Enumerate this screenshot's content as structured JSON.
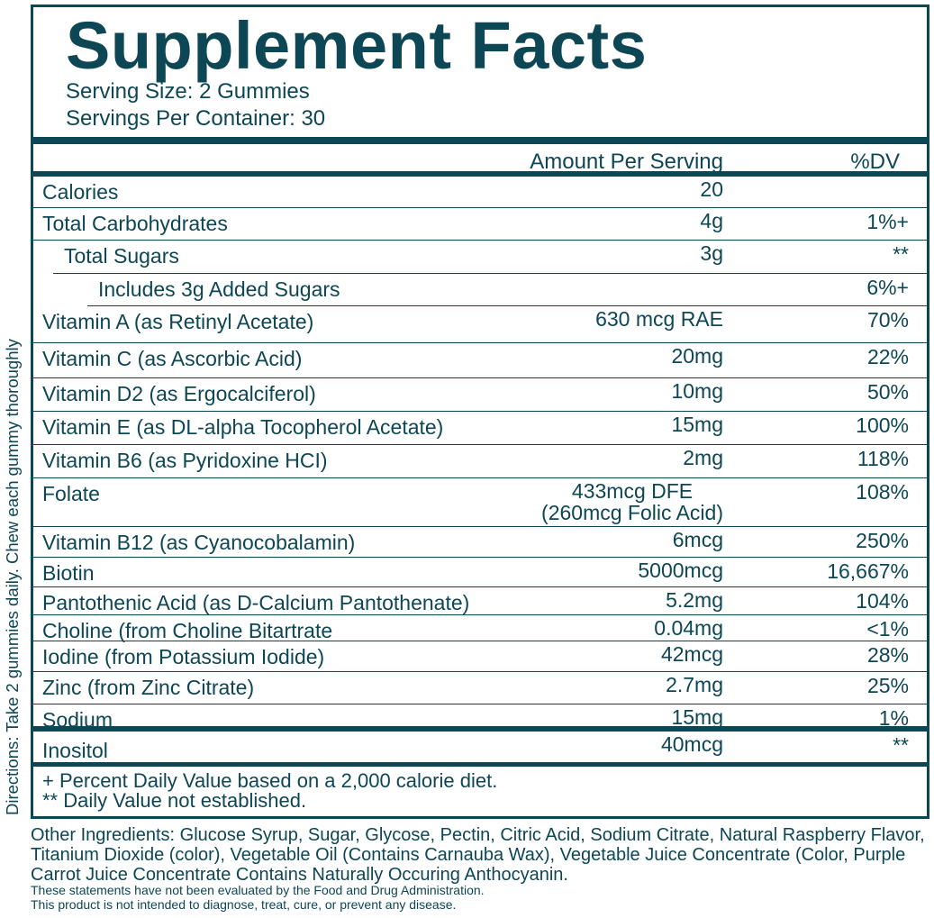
{
  "title": "Supplement Facts",
  "serving_size": "Serving Size: 2 Gummies",
  "servings_per_container": "Servings Per Container: 30",
  "header": {
    "amount": "Amount Per Serving",
    "dv": "%DV"
  },
  "rows": [
    {
      "name": "Calories",
      "amount": "20",
      "dv": ""
    },
    {
      "name": "Total Carbohydrates",
      "amount": "4g",
      "dv": "1%+"
    },
    {
      "name": "Total Sugars",
      "amount": "3g",
      "dv": "**"
    },
    {
      "name": "Includes 3g Added Sugars",
      "amount": "",
      "dv": "6%+"
    },
    {
      "name": "Vitamin A (as Retinyl Acetate)",
      "amount": "630 mcg RAE",
      "dv": "70%"
    },
    {
      "name": "Vitamin C (as Ascorbic Acid)",
      "amount": "20mg",
      "dv": "22%"
    },
    {
      "name": "Vitamin D2 (as Ergocalciferol)",
      "amount": "10mg",
      "dv": "50%"
    },
    {
      "name": "Vitamin E (as DL-alpha Tocopherol Acetate)",
      "amount": "15mg",
      "dv": "100%"
    },
    {
      "name": "Vitamin B6 (as Pyridoxine HCI)",
      "amount": "2mg",
      "dv": "118%"
    },
    {
      "name": "Folate",
      "amount": "433mcg DFE",
      "amount2": "(260mcg Folic Acid)",
      "dv": "108%"
    },
    {
      "name": "Vitamin B12 (as Cyanocobalamin)",
      "amount": "6mcg",
      "dv": "250%"
    },
    {
      "name": "Biotin",
      "amount": "5000mcg",
      "dv": "16,667%"
    },
    {
      "name": "Pantothenic Acid (as D-Calcium Pantothenate)",
      "amount": "5.2mg",
      "dv": "104%"
    },
    {
      "name": "Choline (from Choline Bitartrate",
      "amount": "0.04mg",
      "dv": "<1%"
    },
    {
      "name": "Iodine (from Potassium Iodide)",
      "amount": "42mcg",
      "dv": "28%"
    },
    {
      "name": "Zinc (from Zinc Citrate)",
      "amount": "2.7mg",
      "dv": "25%"
    },
    {
      "name": "Sodium",
      "amount": "15mg",
      "dv": "1%"
    }
  ],
  "inositol": {
    "name": "Inositol",
    "amount": "40mcg",
    "dv": "**"
  },
  "footnotes": [
    "+ Percent Daily Value based on a 2,000 calorie diet.",
    "** Daily Value not established."
  ],
  "directions": "Directions: Take 2 gummies daily. Chew each gummy thoroughly",
  "other_ingredients": "Other Ingredients: Glucose Syrup, Sugar, Glycose, Pectin, Citric Acid, Sodium Citrate, Natural Raspberry Flavor, Titanium Dioxide (color), Vegetable Oil (Contains Carnauba Wax), Vegetable Juice Concentrate (Color, Purple Carrot Juice Concentrate Contains Naturally Occuring Anthocyanin.",
  "disclaimer": [
    "These statements have not been evaluated by the Food and Drug Administration.",
    "This product is not intended to diagnose, treat, cure, or prevent any disease."
  ],
  "colors": {
    "ink": "#0d4654",
    "background": "#ffffff"
  }
}
